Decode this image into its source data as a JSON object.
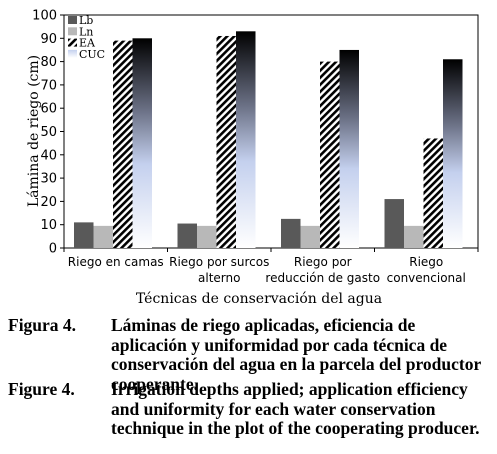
{
  "chart_data": {
    "type": "bar",
    "categories": [
      [
        "Riego en camas"
      ],
      [
        "Riego por surcos",
        "alterno"
      ],
      [
        "Riego por",
        "reducción de gasto"
      ],
      [
        "Riego",
        "convencional"
      ]
    ],
    "series": [
      {
        "name": "Lb",
        "values": [
          11,
          10.5,
          12.5,
          21
        ],
        "style": "solid",
        "color": "#595959"
      },
      {
        "name": "Ln",
        "values": [
          9.5,
          9.5,
          9.5,
          9.5
        ],
        "style": "solid",
        "color": "#b8b8b8"
      },
      {
        "name": "EA",
        "values": [
          89,
          91,
          80,
          47
        ],
        "style": "hatch"
      },
      {
        "name": "CUC",
        "values": [
          90,
          93,
          85,
          81
        ],
        "style": "gradient"
      }
    ],
    "ylabel": "Lámina de riego (cm)",
    "xlabel": "Técnicas de conservación del agua",
    "ylim": [
      0,
      100
    ],
    "yticks": [
      0,
      10,
      20,
      30,
      40,
      50,
      60,
      70,
      80,
      90,
      100
    ],
    "legend_position": "top-left",
    "grid": false
  },
  "captions": {
    "es": {
      "label": "Figura 4.",
      "text": "Láminas de riego aplicadas, eficiencia de aplicación y uniformidad por cada técnica de conservación del agua en la parcela del productor cooperante."
    },
    "en": {
      "label": "Figure 4.",
      "text": "Irrigation depths applied; application efficiency and uniformity for each water conservation technique in the plot of the cooperating producer."
    }
  }
}
